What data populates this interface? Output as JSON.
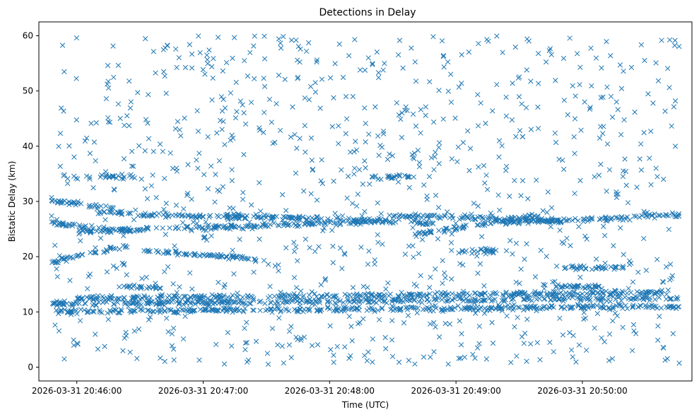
{
  "chart_data": {
    "type": "scatter",
    "title": "Detections in Delay",
    "xlabel": "Time (UTC)",
    "ylabel": "Bistatic Delay (km)",
    "x_axis_kind": "datetime",
    "xlim": [
      "2026-03-31 20:45:42",
      "2026-03-31 20:50:52"
    ],
    "ylim": [
      -2.5,
      62.5
    ],
    "x_ticks": [
      "2026-03-31 20:46:00",
      "2026-03-31 20:47:00",
      "2026-03-31 20:48:00",
      "2026-03-31 20:49:00",
      "2026-03-31 20:50:00"
    ],
    "y_ticks": [
      0,
      10,
      20,
      30,
      40,
      50,
      60
    ],
    "marker": "x",
    "grid": false,
    "series_color": "#1f77b4",
    "time_range": [
      "2026-03-31 20:45:48",
      "2026-03-31 20:50:46"
    ],
    "tracks": [
      {
        "start": "2026-03-31 20:45:48",
        "end": "2026-03-31 20:46:24",
        "delay_start": 19.0,
        "delay_end": 22.0
      },
      {
        "start": "2026-03-31 20:45:48",
        "end": "2026-03-31 20:46:18",
        "delay_start": 30.0,
        "delay_end": 28.8
      },
      {
        "start": "2026-03-31 20:45:48",
        "end": "2026-03-31 20:46:30",
        "delay_start": 26.0,
        "delay_end": 24.5
      },
      {
        "start": "2026-03-31 20:46:00",
        "end": "2026-03-31 20:48:30",
        "delay_start": 24.5,
        "delay_end": 26.5
      },
      {
        "start": "2026-03-31 20:46:10",
        "end": "2026-03-31 20:47:20",
        "delay_start": 28.0,
        "delay_end": 27.0
      },
      {
        "start": "2026-03-31 20:47:10",
        "end": "2026-03-31 20:48:50",
        "delay_start": 27.5,
        "delay_end": 26.0
      },
      {
        "start": "2026-03-31 20:48:40",
        "end": "2026-03-31 20:49:40",
        "delay_start": 24.0,
        "delay_end": 27.5
      },
      {
        "start": "2026-03-31 20:49:20",
        "end": "2026-03-31 20:50:46",
        "delay_start": 26.0,
        "delay_end": 27.5
      },
      {
        "start": "2026-03-31 20:48:30",
        "end": "2026-03-31 20:49:50",
        "delay_start": 27.5,
        "delay_end": 26.5
      },
      {
        "start": "2026-03-31 20:46:30",
        "end": "2026-03-31 20:47:30",
        "delay_start": 21.0,
        "delay_end": 19.5
      },
      {
        "start": "2026-03-31 20:48:20",
        "end": "2026-03-31 20:48:40",
        "delay_start": 34.5,
        "delay_end": 34.5
      },
      {
        "start": "2026-03-31 20:46:10",
        "end": "2026-03-31 20:46:28",
        "delay_start": 34.5,
        "delay_end": 34.5
      },
      {
        "start": "2026-03-31 20:49:00",
        "end": "2026-03-31 20:49:20",
        "delay_start": 21.0,
        "delay_end": 21.0
      },
      {
        "start": "2026-03-31 20:49:50",
        "end": "2026-03-31 20:50:20",
        "delay_start": 18.0,
        "delay_end": 18.0
      },
      {
        "start": "2026-03-31 20:45:48",
        "end": "2026-03-31 20:50:46",
        "delay_start": 11.5,
        "delay_end": 12.5
      },
      {
        "start": "2026-03-31 20:45:48",
        "end": "2026-03-31 20:50:46",
        "delay_start": 10.0,
        "delay_end": 11.0
      },
      {
        "start": "2026-03-31 20:46:00",
        "end": "2026-03-31 20:50:40",
        "delay_start": 12.5,
        "delay_end": 13.5
      },
      {
        "start": "2026-03-31 20:49:40",
        "end": "2026-03-31 20:50:10",
        "delay_start": 14.5,
        "delay_end": 14.5
      },
      {
        "start": "2026-03-31 20:46:20",
        "end": "2026-03-31 20:46:40",
        "delay_start": 14.5,
        "delay_end": 14.5
      }
    ],
    "clutter_density": "approximately 1000 detections spread uniformly over 0–60 km"
  }
}
